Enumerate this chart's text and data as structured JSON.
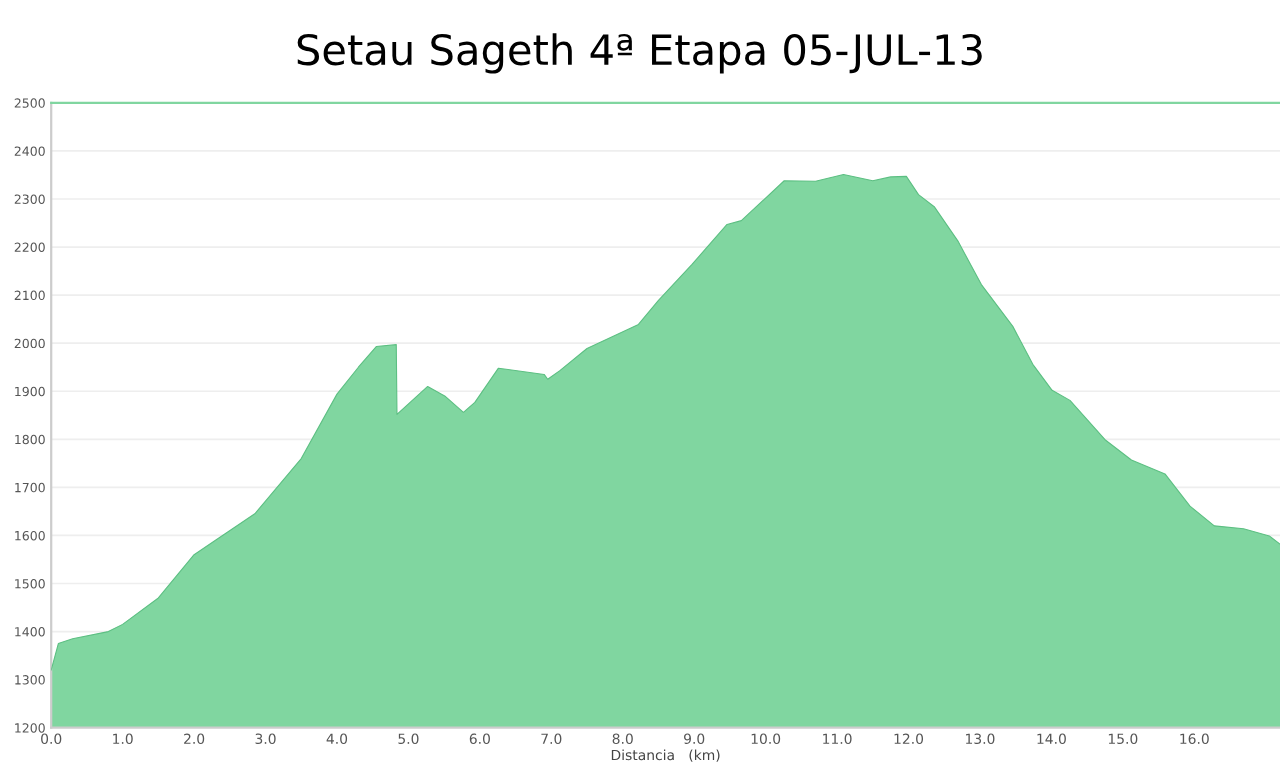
{
  "chart_data": {
    "type": "area",
    "title": "Setau Sageth 4ª Etapa 05-JUL-13",
    "xlabel": "Distancia   (km)",
    "x": [
      0.0,
      0.1,
      0.3,
      0.8,
      1.0,
      1.5,
      2.0,
      2.3,
      2.85,
      3.5,
      4.0,
      4.3,
      4.55,
      4.83,
      4.84,
      5.27,
      5.52,
      5.77,
      5.93,
      6.26,
      6.9,
      6.95,
      7.12,
      7.5,
      8.22,
      8.5,
      8.97,
      9.46,
      9.66,
      10.26,
      10.7,
      11.09,
      11.5,
      11.75,
      11.97,
      12.14,
      12.36,
      12.69,
      13.02,
      13.46,
      13.74,
      14.01,
      14.26,
      14.76,
      15.12,
      15.59,
      15.94,
      16.28,
      16.69,
      17.05,
      17.2
    ],
    "series": [
      {
        "color": "#80d6a0",
        "values": [
          1320,
          1375,
          1385,
          1400,
          1415,
          1470,
          1560,
          1590,
          1645,
          1760,
          1894,
          1950,
          1993,
          1997,
          1852,
          1910,
          1889,
          1856,
          1877,
          1948,
          1935,
          1925,
          1943,
          1989,
          2039,
          2089,
          2164,
          2247,
          2255,
          2338,
          2337,
          2351,
          2338,
          2346,
          2347,
          2309,
          2284,
          2213,
          2122,
          2035,
          1956,
          1902,
          1881,
          1798,
          1757,
          1728,
          1661,
          1620,
          1614,
          1599,
          1582
        ]
      }
    ],
    "xlim": [
      0,
      17.2
    ],
    "ylim": [
      1200,
      2500
    ],
    "xticks": [
      {
        "value": 0,
        "label": "0.0"
      },
      {
        "value": 1,
        "label": "1.0"
      },
      {
        "value": 2,
        "label": "2.0"
      },
      {
        "value": 3,
        "label": "3.0"
      },
      {
        "value": 4,
        "label": "4.0"
      },
      {
        "value": 5,
        "label": "5.0"
      },
      {
        "value": 6,
        "label": "6.0"
      },
      {
        "value": 7,
        "label": "7.0"
      },
      {
        "value": 8,
        "label": "8.0"
      },
      {
        "value": 9,
        "label": "9.0"
      },
      {
        "value": 10,
        "label": "10.0"
      },
      {
        "value": 11,
        "label": "11.0"
      },
      {
        "value": 12,
        "label": "12.0"
      },
      {
        "value": 13,
        "label": "13.0"
      },
      {
        "value": 14,
        "label": "14.0"
      },
      {
        "value": 15,
        "label": "15.0"
      },
      {
        "value": 16,
        "label": "16.0"
      }
    ],
    "yticks": [
      1200,
      1300,
      1400,
      1500,
      1600,
      1700,
      1800,
      1900,
      2000,
      2100,
      2200,
      2300,
      2400,
      2500
    ],
    "grid": "y",
    "marker": "none"
  }
}
